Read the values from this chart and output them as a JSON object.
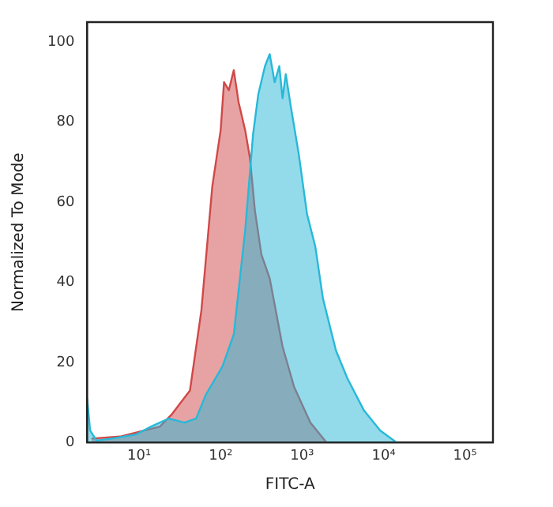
{
  "chart_data": {
    "type": "area",
    "xlabel": "FITC-A",
    "ylabel": "Normalized To Mode",
    "log": "x",
    "grid": false,
    "legend": false,
    "xlim": [
      2.3,
      220000
    ],
    "xticks": [
      {
        "value": 10,
        "label": "10¹"
      },
      {
        "value": 100,
        "label": "10²"
      },
      {
        "value": 1000,
        "label": "10³"
      },
      {
        "value": 10000,
        "label": "10⁴"
      },
      {
        "value": 100000,
        "label": "10⁵"
      }
    ],
    "ylim": [
      0,
      105
    ],
    "yticks": [
      0,
      20,
      40,
      60,
      80,
      100
    ],
    "series": [
      {
        "color": "#28b8d8",
        "x": [
          2.3,
          2.5,
          3.0,
          4.6,
          9.1,
          14,
          23,
          36,
          50,
          66,
          105,
          145,
          200,
          250,
          290,
          350,
          400,
          460,
          525,
          575,
          630,
          725,
          910,
          1150,
          1450,
          1800,
          2600,
          3600,
          5750,
          9100,
          14500
        ],
        "values": [
          11,
          3,
          0.5,
          1,
          2,
          4,
          6,
          5,
          6,
          12,
          19,
          27,
          53,
          77,
          87,
          94,
          97,
          90,
          94,
          86,
          92,
          84,
          72,
          57,
          49,
          36,
          23,
          16,
          8,
          3,
          0
        ]
      },
      {
        "color": "#d04848",
        "x": [
          2.6,
          5.8,
          11.5,
          18,
          25,
          42,
          58,
          79,
          100,
          110,
          126,
          145,
          166,
          200,
          229,
          263,
          316,
          400,
          575,
          794,
          1260,
          2000
        ],
        "values": [
          1,
          1.5,
          3,
          4,
          7,
          13,
          33,
          64,
          78,
          90,
          88,
          93,
          85,
          78,
          71,
          58,
          47,
          41,
          24,
          14,
          5,
          0
        ]
      }
    ]
  }
}
